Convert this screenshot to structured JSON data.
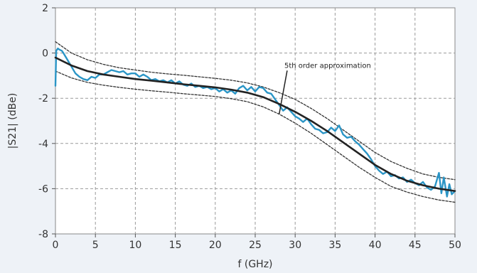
{
  "chart_data": {
    "type": "line",
    "title": "",
    "xlabel": "f (GHz)",
    "ylabel": "|S21| (dBe)",
    "xlim": [
      0,
      50
    ],
    "ylim": [
      -8,
      2
    ],
    "x_ticks": [
      0,
      5,
      10,
      15,
      20,
      25,
      30,
      35,
      40,
      45,
      50
    ],
    "y_ticks": [
      2,
      0,
      -2,
      -4,
      -6,
      -8
    ],
    "x_tick_labels": [
      "0",
      "5",
      "10",
      "15",
      "20",
      "25",
      "30",
      "35",
      "40",
      "45",
      "50"
    ],
    "y_tick_labels": [
      "2",
      "0",
      "-2",
      "-4",
      "-6",
      "-8"
    ],
    "grid": "dashed-horizontal-and-vertical",
    "annotation": {
      "text": "5th order approximation",
      "target": [
        28,
        -2.7
      ],
      "anchor": [
        29,
        -0.65
      ]
    },
    "series": [
      {
        "name": "",
        "role": "measured",
        "color": "#2a95c6",
        "x": [
          0.0,
          0.1,
          0.3,
          0.5,
          0.8,
          1.0,
          1.5,
          2.0,
          2.5,
          3.0,
          3.5,
          4.0,
          4.5,
          5.0,
          5.5,
          6.0,
          6.5,
          7.0,
          7.5,
          8.0,
          8.5,
          9.0,
          9.5,
          10.0,
          10.5,
          11.0,
          11.5,
          12.0,
          12.5,
          13.0,
          13.5,
          14.0,
          14.5,
          15.0,
          15.5,
          16.0,
          16.5,
          17.0,
          17.5,
          18.0,
          18.5,
          19.0,
          19.5,
          20.0,
          20.5,
          21.0,
          21.5,
          22.0,
          22.5,
          23.0,
          23.5,
          24.0,
          24.5,
          25.0,
          25.5,
          26.0,
          26.5,
          27.0,
          27.5,
          28.0,
          28.5,
          29.0,
          29.5,
          30.0,
          30.5,
          31.0,
          31.5,
          32.0,
          32.5,
          33.0,
          33.5,
          34.0,
          34.5,
          35.0,
          35.5,
          36.0,
          36.5,
          37.0,
          37.5,
          38.0,
          38.5,
          39.0,
          39.5,
          40.0,
          40.5,
          41.0,
          41.5,
          42.0,
          42.5,
          43.0,
          43.5,
          44.0,
          44.5,
          45.0,
          45.5,
          46.0,
          46.5,
          47.0,
          47.5,
          48.0,
          48.3,
          48.6,
          49.0,
          49.3,
          49.6,
          50.0
        ],
        "y": [
          -1.45,
          0.1,
          0.2,
          0.15,
          0.1,
          0.0,
          -0.3,
          -0.6,
          -0.9,
          -1.05,
          -1.15,
          -1.2,
          -1.05,
          -1.1,
          -0.95,
          -0.95,
          -0.85,
          -0.75,
          -0.8,
          -0.85,
          -0.8,
          -0.95,
          -0.9,
          -0.9,
          -1.05,
          -0.95,
          -1.05,
          -1.2,
          -1.15,
          -1.25,
          -1.2,
          -1.3,
          -1.2,
          -1.35,
          -1.25,
          -1.4,
          -1.45,
          -1.35,
          -1.5,
          -1.45,
          -1.55,
          -1.5,
          -1.6,
          -1.55,
          -1.7,
          -1.6,
          -1.75,
          -1.65,
          -1.8,
          -1.55,
          -1.45,
          -1.65,
          -1.5,
          -1.7,
          -1.5,
          -1.55,
          -1.75,
          -1.8,
          -2.05,
          -2.3,
          -2.55,
          -2.4,
          -2.6,
          -2.8,
          -2.9,
          -3.05,
          -2.9,
          -3.15,
          -3.35,
          -3.4,
          -3.55,
          -3.5,
          -3.3,
          -3.45,
          -3.2,
          -3.6,
          -3.75,
          -3.7,
          -3.9,
          -4.05,
          -4.25,
          -4.45,
          -4.7,
          -5.0,
          -5.2,
          -5.35,
          -5.25,
          -5.45,
          -5.4,
          -5.55,
          -5.5,
          -5.7,
          -5.6,
          -5.75,
          -5.85,
          -5.7,
          -5.95,
          -6.05,
          -5.9,
          -5.3,
          -6.2,
          -5.5,
          -6.35,
          -5.8,
          -6.25,
          -6.1
        ]
      },
      {
        "name": "5th order approximation",
        "role": "fit",
        "color": "#222222",
        "x": [
          0,
          2,
          4,
          6,
          8,
          10,
          12,
          14,
          16,
          18,
          20,
          22,
          24,
          26,
          28,
          30,
          32,
          34,
          36,
          38,
          40,
          42,
          44,
          46,
          48,
          50
        ],
        "y": [
          -0.2,
          -0.55,
          -0.8,
          -0.95,
          -1.05,
          -1.15,
          -1.22,
          -1.3,
          -1.38,
          -1.45,
          -1.52,
          -1.62,
          -1.75,
          -1.95,
          -2.25,
          -2.6,
          -3.0,
          -3.45,
          -3.95,
          -4.45,
          -4.95,
          -5.35,
          -5.65,
          -5.85,
          -6.0,
          -6.1
        ]
      },
      {
        "name": "",
        "role": "upper-bound",
        "color": "#333333",
        "x": [
          0,
          2,
          4,
          6,
          8,
          10,
          12,
          14,
          16,
          18,
          20,
          22,
          24,
          26,
          28,
          30,
          32,
          34,
          36,
          38,
          40,
          42,
          44,
          46,
          48,
          50
        ],
        "y": [
          0.5,
          0.0,
          -0.3,
          -0.5,
          -0.65,
          -0.75,
          -0.85,
          -0.92,
          -0.98,
          -1.05,
          -1.12,
          -1.2,
          -1.32,
          -1.5,
          -1.75,
          -2.05,
          -2.45,
          -2.9,
          -3.4,
          -3.9,
          -4.4,
          -4.8,
          -5.1,
          -5.35,
          -5.5,
          -5.6
        ]
      },
      {
        "name": "",
        "role": "lower-bound",
        "color": "#333333",
        "x": [
          0,
          2,
          4,
          6,
          8,
          10,
          12,
          14,
          16,
          18,
          20,
          22,
          24,
          26,
          28,
          30,
          32,
          34,
          36,
          38,
          40,
          42,
          44,
          46,
          48,
          50
        ],
        "y": [
          -0.8,
          -1.1,
          -1.3,
          -1.42,
          -1.52,
          -1.6,
          -1.67,
          -1.73,
          -1.8,
          -1.86,
          -1.92,
          -2.02,
          -2.15,
          -2.38,
          -2.7,
          -3.1,
          -3.55,
          -4.05,
          -4.55,
          -5.05,
          -5.5,
          -5.9,
          -6.15,
          -6.35,
          -6.5,
          -6.6
        ]
      }
    ]
  }
}
